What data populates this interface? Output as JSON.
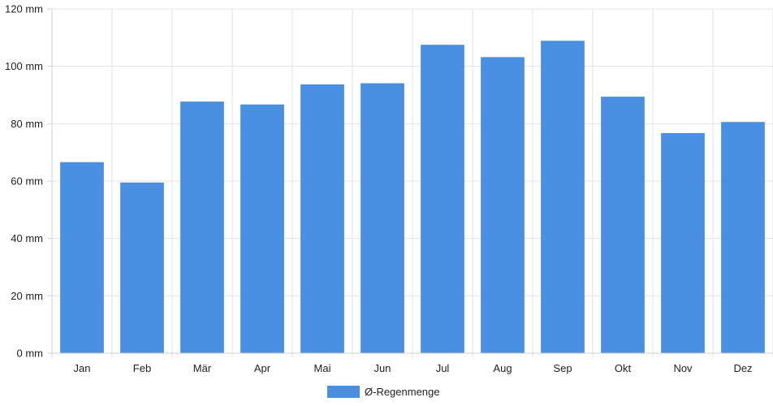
{
  "chart_data": {
    "type": "bar",
    "categories": [
      "Jan",
      "Feb",
      "Mär",
      "Apr",
      "Mai",
      "Jun",
      "Jul",
      "Aug",
      "Sep",
      "Okt",
      "Nov",
      "Dez"
    ],
    "series": [
      {
        "name": "Ø-Regenmenge",
        "color": "#4a90e2",
        "values": [
          66.5,
          59.4,
          87.6,
          86.6,
          93.6,
          94.0,
          107.4,
          103.1,
          108.8,
          89.3,
          76.6,
          80.5
        ]
      }
    ],
    "title": "",
    "xlabel": "",
    "ylabel": "",
    "ylim": [
      0,
      120
    ],
    "y_ticks": [
      0,
      20,
      40,
      60,
      80,
      100,
      120
    ],
    "y_unit": "mm",
    "y_tick_labels": [
      "0 mm",
      "20 mm",
      "40 mm",
      "60 mm",
      "80 mm",
      "100 mm",
      "120 mm"
    ],
    "grid": true,
    "legend_position": "bottom-center"
  }
}
